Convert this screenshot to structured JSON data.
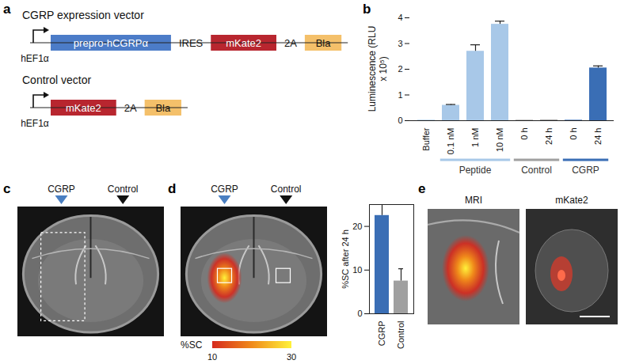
{
  "panel_labels": [
    "a",
    "b",
    "c",
    "d",
    "e"
  ],
  "diagram": {
    "vectors": [
      {
        "title": "CGRP expression vector",
        "promoter": "hEF1α",
        "elements": [
          {
            "label": "prepro-hCGRPα",
            "kind": "box",
            "color": "#4c7cc8"
          },
          {
            "label": "IRES",
            "kind": "text"
          },
          {
            "label": "mKate2",
            "kind": "box",
            "color": "#b8262f"
          },
          {
            "label": "2A",
            "kind": "text"
          },
          {
            "label": "Bla",
            "kind": "box",
            "color": "#f4c06a"
          }
        ]
      },
      {
        "title": "Control vector",
        "promoter": "hEF1α",
        "elements": [
          {
            "label": "mKate2",
            "kind": "box",
            "color": "#b8262f"
          },
          {
            "label": "2A",
            "kind": "text"
          },
          {
            "label": "Bla",
            "kind": "box",
            "color": "#f4c06a"
          }
        ]
      }
    ]
  },
  "images": {
    "markers": [
      {
        "label": "CGRP",
        "color": "#4a7fc1"
      },
      {
        "label": "Control",
        "color": "#111111"
      }
    ],
    "colorbar": {
      "label": "%SC",
      "range": [
        10,
        30
      ],
      "ticks": [
        10,
        30
      ],
      "colors": [
        "#d62a1e",
        "#f08a1a",
        "#fff23a"
      ]
    },
    "titles": [
      "MRI",
      "mKate2"
    ]
  },
  "chart_data": [
    {
      "type": "bar",
      "y_label": "Luminescence (RLU x 10⁵)",
      "categories": [
        "Buffer",
        "0.1 nM",
        "1 nM",
        "10 nM",
        "0 h",
        "24 h",
        "0 h",
        "24 h"
      ],
      "values": [
        0.02,
        0.6,
        2.7,
        3.75,
        0.02,
        0.03,
        0.02,
        2.05
      ],
      "errors": [
        0,
        0.03,
        0.25,
        0.12,
        0,
        0,
        0,
        0.08
      ],
      "colors": [
        "#a8c8e8",
        "#a8c8e8",
        "#a8c8e8",
        "#a8c8e8",
        "#a0a0a0",
        "#a0a0a0",
        "#3a6eb5",
        "#3a6eb5"
      ],
      "groups": [
        null,
        "Peptide",
        "Peptide",
        "Peptide",
        "Control",
        "Control",
        "CGRP",
        "CGRP"
      ],
      "ylim": [
        0,
        4
      ],
      "yticks": [
        0,
        1,
        2,
        3,
        4
      ]
    },
    {
      "type": "bar",
      "y_label": "%SC after 24 h",
      "categories": [
        "CGRP",
        "Control"
      ],
      "values": [
        22.5,
        7.5
      ],
      "errors": [
        2.7,
        2.8
      ],
      "colors": [
        "#3a6eb5",
        "#a0a0a0"
      ],
      "ylim": [
        0,
        25
      ],
      "yticks": [
        0,
        10,
        20
      ]
    }
  ]
}
